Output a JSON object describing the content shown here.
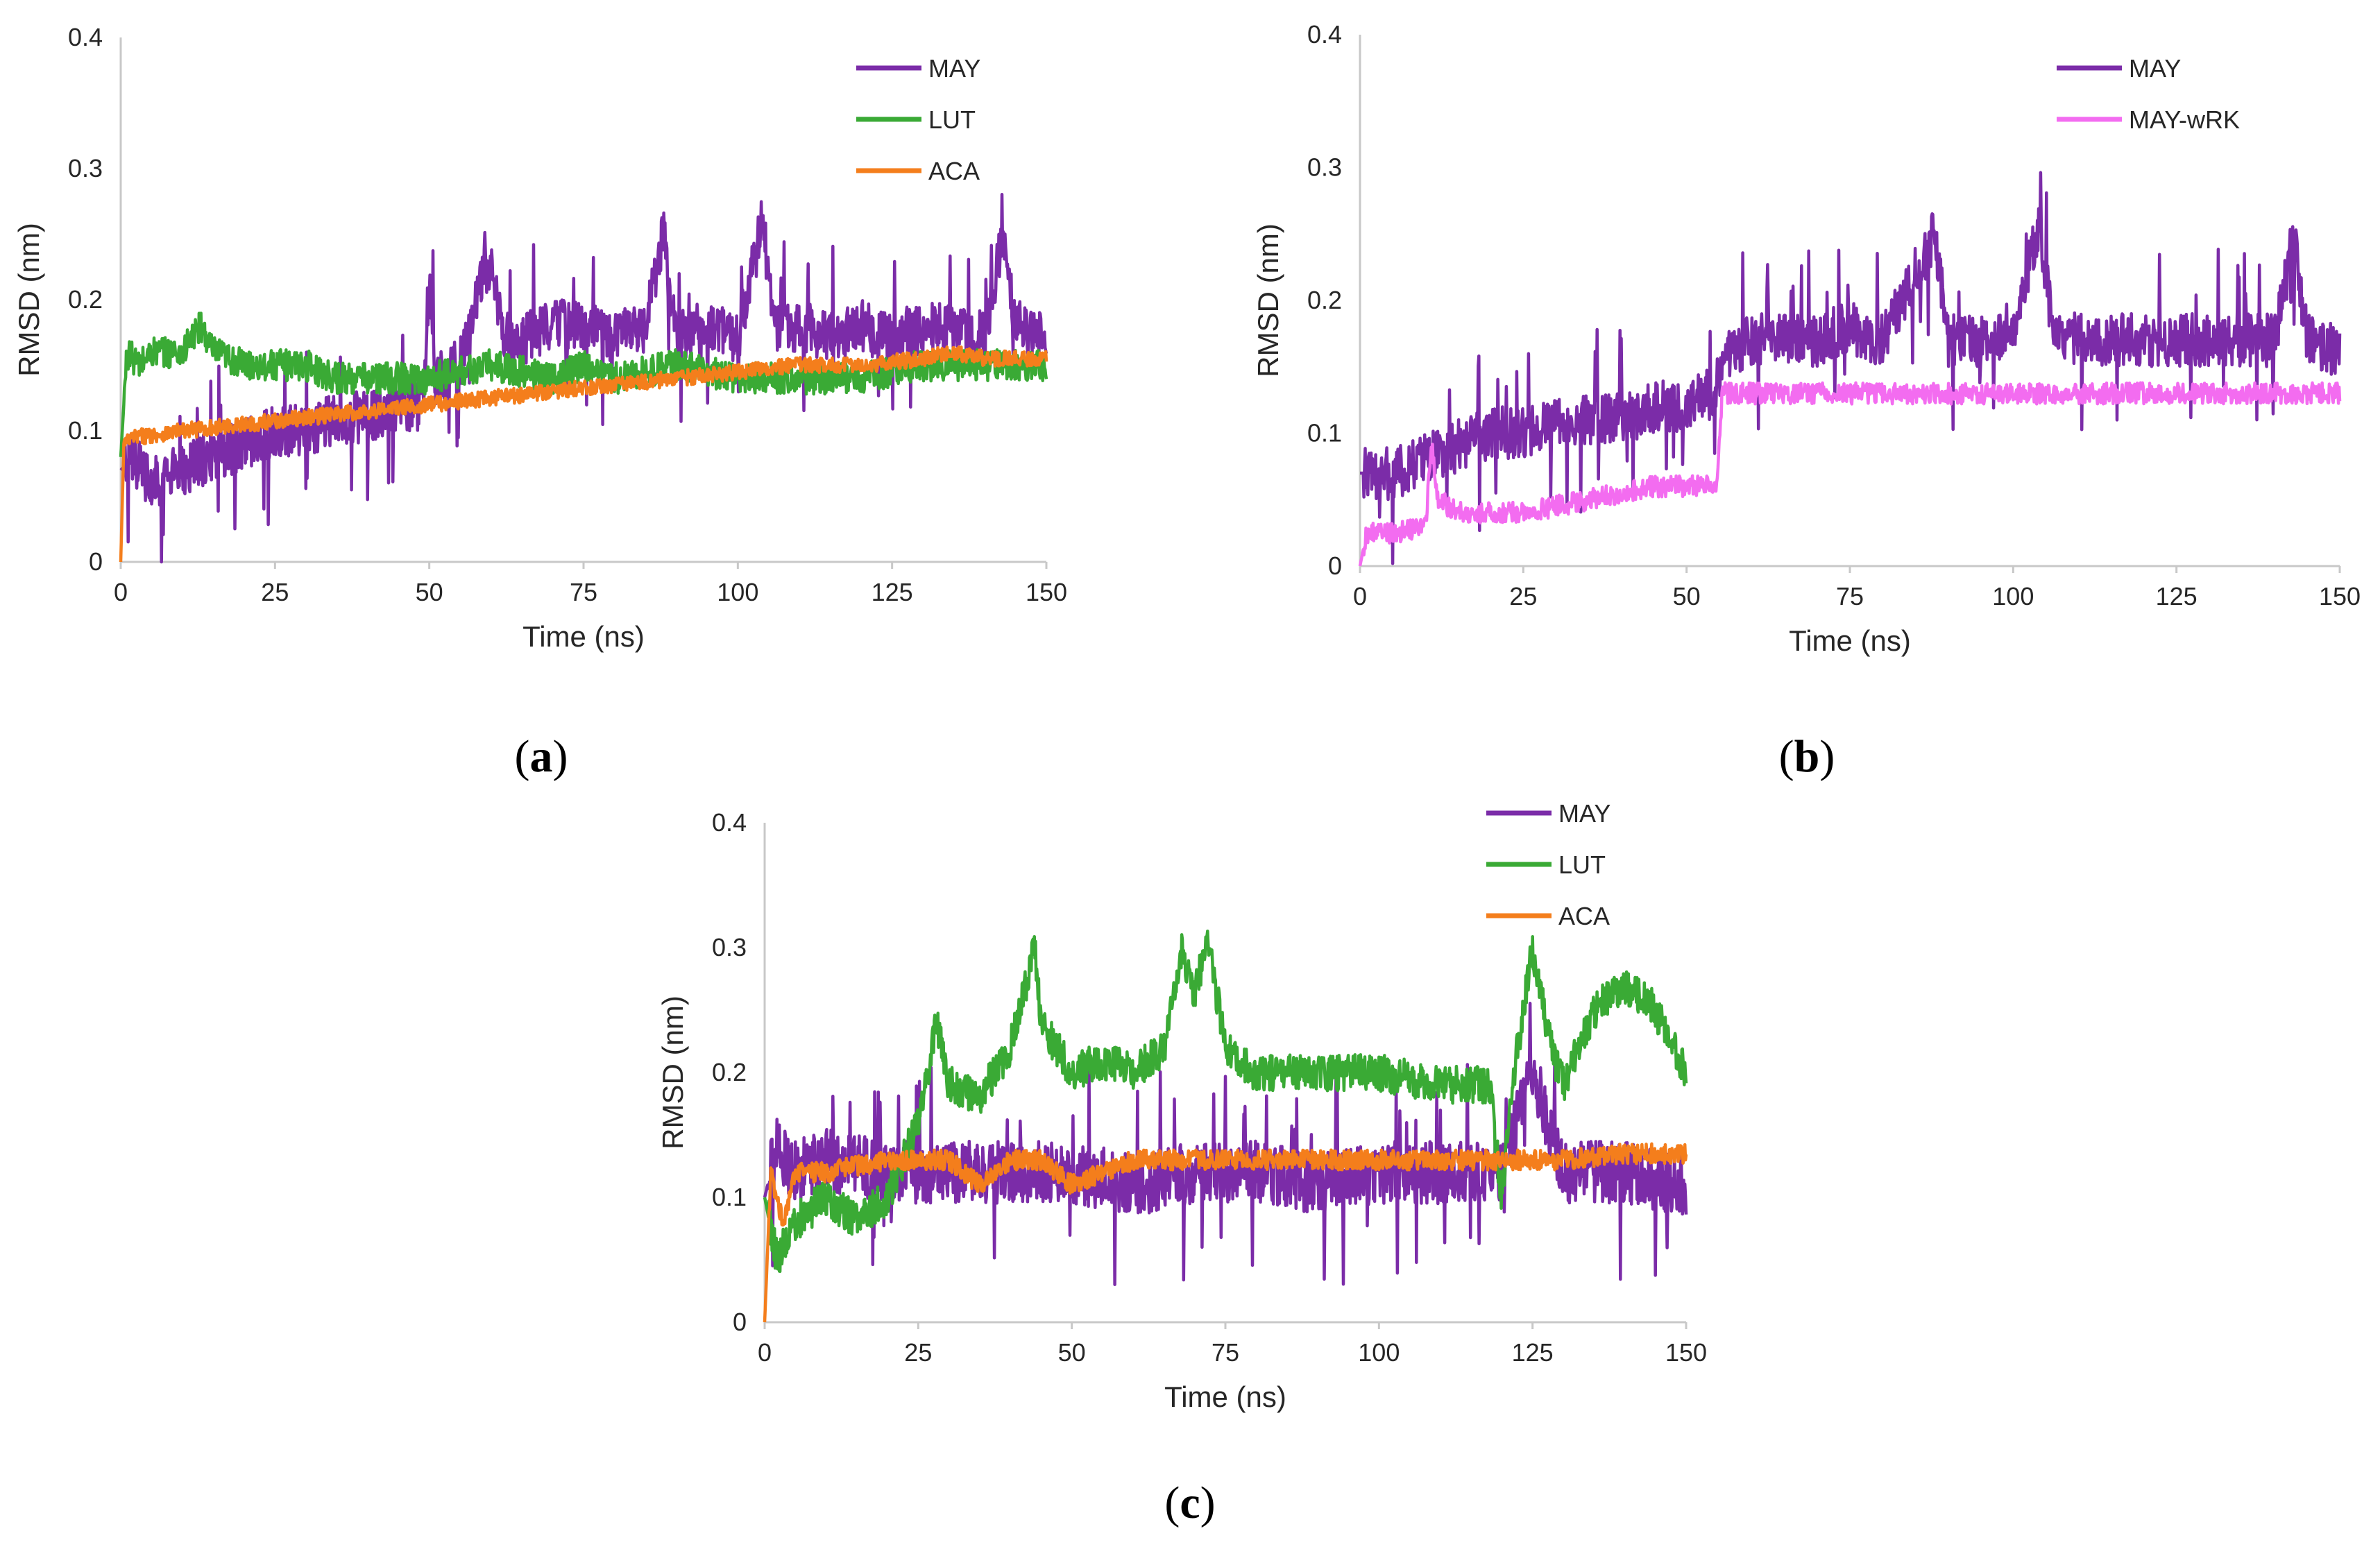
{
  "colors": {
    "MAY": "#7b2ca8",
    "LUT": "#3aaa35",
    "ACA": "#f47e1c",
    "MAY-wRK": "#f36cf0",
    "axis": "#c8c8c8",
    "text": "#262626"
  },
  "chart_data": [
    {
      "type": "line",
      "panel": "a",
      "xlabel": "Time (ns)",
      "ylabel": "RMSD (nm)",
      "xlim": [
        0,
        150
      ],
      "ylim": [
        0,
        0.4
      ],
      "xticks": [
        "0",
        "25",
        "50",
        "75",
        "100",
        "125",
        "150"
      ],
      "yticks": [
        "0",
        "0.1",
        "0.2",
        "0.3",
        "0.4"
      ],
      "legend_position": "top-right",
      "series": [
        {
          "name": "MAY",
          "color": "#7b2ca8",
          "t": [
            0,
            2,
            5,
            10,
            15,
            20,
            25,
            30,
            35,
            40,
            45,
            49,
            50,
            51,
            55,
            58,
            60,
            62,
            65,
            70,
            75,
            80,
            85,
            88,
            90,
            95,
            100,
            104,
            106,
            110,
            115,
            120,
            125,
            130,
            135,
            140,
            143,
            145,
            150
          ],
          "v": [
            0.07,
            0.08,
            0.06,
            0.07,
            0.08,
            0.09,
            0.1,
            0.1,
            0.11,
            0.11,
            0.12,
            0.12,
            0.22,
            0.14,
            0.15,
            0.21,
            0.23,
            0.17,
            0.17,
            0.18,
            0.18,
            0.17,
            0.18,
            0.25,
            0.17,
            0.18,
            0.17,
            0.26,
            0.18,
            0.18,
            0.17,
            0.18,
            0.17,
            0.18,
            0.18,
            0.17,
            0.25,
            0.18,
            0.17
          ],
          "noise": 0.02
        },
        {
          "name": "LUT",
          "color": "#3aaa35",
          "t": [
            0,
            1,
            3,
            5,
            10,
            13,
            15,
            20,
            25,
            30,
            35,
            40,
            45,
            50,
            60,
            70,
            75,
            80,
            90,
            100,
            110,
            120,
            130,
            140,
            150
          ],
          "v": [
            0.08,
            0.16,
            0.15,
            0.16,
            0.16,
            0.18,
            0.16,
            0.15,
            0.15,
            0.15,
            0.14,
            0.14,
            0.14,
            0.14,
            0.15,
            0.14,
            0.15,
            0.14,
            0.15,
            0.14,
            0.14,
            0.14,
            0.15,
            0.15,
            0.15
          ],
          "noise": 0.012
        },
        {
          "name": "ACA",
          "color": "#f47e1c",
          "t": [
            0,
            0.5,
            2,
            10,
            20,
            30,
            40,
            50,
            60,
            70,
            80,
            90,
            100,
            110,
            120,
            130,
            135,
            140,
            150
          ],
          "v": [
            0.0,
            0.09,
            0.095,
            0.1,
            0.105,
            0.11,
            0.115,
            0.12,
            0.125,
            0.13,
            0.135,
            0.14,
            0.145,
            0.15,
            0.15,
            0.155,
            0.16,
            0.155,
            0.155
          ],
          "noise": 0.006
        }
      ]
    },
    {
      "type": "line",
      "panel": "b",
      "xlabel": "Time (ns)",
      "ylabel": "RMSD (nm)",
      "xlim": [
        0,
        150
      ],
      "ylim": [
        0,
        0.4
      ],
      "xticks": [
        "0",
        "25",
        "50",
        "75",
        "100",
        "125",
        "150"
      ],
      "yticks": [
        "0",
        "0.1",
        "0.2",
        "0.3",
        "0.4"
      ],
      "legend_position": "top-right",
      "series": [
        {
          "name": "MAY",
          "color": "#7b2ca8",
          "t": [
            0,
            5,
            10,
            15,
            20,
            25,
            30,
            35,
            40,
            45,
            50,
            54,
            56,
            60,
            65,
            70,
            75,
            80,
            88,
            90,
            95,
            100,
            104,
            106,
            110,
            120,
            130,
            140,
            143,
            145,
            150
          ],
          "v": [
            0.07,
            0.07,
            0.08,
            0.09,
            0.1,
            0.1,
            0.11,
            0.11,
            0.11,
            0.12,
            0.12,
            0.13,
            0.16,
            0.17,
            0.17,
            0.17,
            0.18,
            0.17,
            0.25,
            0.17,
            0.17,
            0.18,
            0.26,
            0.18,
            0.17,
            0.17,
            0.17,
            0.17,
            0.25,
            0.17,
            0.16
          ],
          "noise": 0.02
        },
        {
          "name": "MAY-wRK",
          "color": "#f36cf0",
          "t": [
            0,
            1,
            5,
            10,
            11,
            12,
            15,
            20,
            25,
            30,
            35,
            40,
            45,
            50,
            54.5,
            55.5,
            60,
            70,
            80,
            90,
            100,
            110,
            120,
            130,
            140,
            150
          ],
          "v": [
            0.0,
            0.025,
            0.025,
            0.03,
            0.09,
            0.05,
            0.04,
            0.04,
            0.04,
            0.045,
            0.05,
            0.055,
            0.06,
            0.06,
            0.06,
            0.13,
            0.13,
            0.13,
            0.13,
            0.13,
            0.13,
            0.13,
            0.13,
            0.13,
            0.13,
            0.13
          ],
          "noise": 0.008
        }
      ]
    },
    {
      "type": "line",
      "panel": "c",
      "xlabel": "Time (ns)",
      "ylabel": "RMSD (nm)",
      "xlim": [
        0,
        150
      ],
      "ylim": [
        0,
        0.4
      ],
      "xticks": [
        "0",
        "25",
        "50",
        "75",
        "100",
        "125",
        "150"
      ],
      "yticks": [
        "0",
        "0.1",
        "0.2",
        "0.3",
        "0.4"
      ],
      "legend_position": "top-right",
      "series": [
        {
          "name": "MAY",
          "color": "#7b2ca8",
          "t": [
            0,
            2,
            5,
            10,
            20,
            30,
            40,
            50,
            60,
            70,
            80,
            90,
            100,
            110,
            120,
            125,
            130,
            140,
            150
          ],
          "v": [
            0.1,
            0.14,
            0.12,
            0.13,
            0.12,
            0.12,
            0.12,
            0.12,
            0.11,
            0.12,
            0.12,
            0.11,
            0.12,
            0.12,
            0.12,
            0.2,
            0.12,
            0.12,
            0.11
          ],
          "noise": 0.025
        },
        {
          "name": "LUT",
          "color": "#3aaa35",
          "t": [
            0,
            2,
            5,
            10,
            15,
            20,
            25,
            28,
            30,
            35,
            40,
            44,
            45,
            50,
            55,
            60,
            65,
            68,
            70,
            72,
            75,
            80,
            90,
            100,
            110,
            118,
            120,
            122,
            125,
            128,
            130,
            135,
            140,
            145,
            150
          ],
          "v": [
            0.1,
            0.05,
            0.08,
            0.1,
            0.08,
            0.1,
            0.16,
            0.24,
            0.19,
            0.18,
            0.22,
            0.3,
            0.24,
            0.2,
            0.21,
            0.2,
            0.22,
            0.3,
            0.26,
            0.31,
            0.22,
            0.2,
            0.2,
            0.2,
            0.19,
            0.19,
            0.1,
            0.2,
            0.3,
            0.22,
            0.19,
            0.25,
            0.27,
            0.25,
            0.2
          ],
          "noise": 0.015
        },
        {
          "name": "ACA",
          "color": "#f47e1c",
          "t": [
            0,
            1,
            3,
            5,
            10,
            20,
            30,
            35,
            40,
            45,
            50,
            55,
            60,
            70,
            80,
            90,
            100,
            110,
            120,
            130,
            140,
            150
          ],
          "v": [
            0.0,
            0.12,
            0.08,
            0.12,
            0.12,
            0.13,
            0.13,
            0.11,
            0.13,
            0.13,
            0.11,
            0.12,
            0.13,
            0.13,
            0.13,
            0.13,
            0.13,
            0.13,
            0.13,
            0.13,
            0.135,
            0.135
          ],
          "noise": 0.008
        }
      ]
    }
  ],
  "panel_labels": {
    "a": "a",
    "b": "b",
    "c": "c"
  }
}
